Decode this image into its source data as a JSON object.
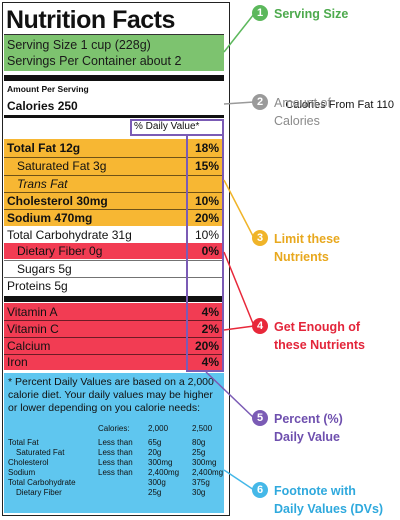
{
  "label": {
    "title": "Nutrition Facts",
    "serving_size": "Serving Size 1 cup (228g)",
    "servings_per_container": "Servings Per Container about 2",
    "amount_per_serving": "Amount Per Serving",
    "calories": "Calories 250",
    "calories_from_fat": "Calories From Fat 110",
    "dv_header": "% Daily Value*",
    "limit_rows": [
      {
        "name": "Total Fat 12g",
        "pct": "18%"
      },
      {
        "name": "Saturated Fat 3g",
        "pct": "15%"
      },
      {
        "name": "Trans Fat",
        "pct": ""
      },
      {
        "name": "Cholesterol 30mg",
        "pct": "10%"
      },
      {
        "name": "Sodium 470mg",
        "pct": "20%"
      }
    ],
    "carb_row": {
      "name": "Total Carbohydrate 31g",
      "pct": "10%"
    },
    "fiber_row": {
      "name": "Dietary Fiber 0g",
      "pct": "0%"
    },
    "sugars_row": {
      "name": "Sugars 5g"
    },
    "protein_row": {
      "name": "Proteins 5g"
    },
    "vitamin_rows": [
      {
        "name": "Vitamin A",
        "pct": "4%"
      },
      {
        "name": "Vitamin C",
        "pct": "2%"
      },
      {
        "name": "Calcium",
        "pct": "20%"
      },
      {
        "name": "Iron",
        "pct": "4%"
      }
    ],
    "footnote": "* Percent Daily Values are based on a 2,000 calorie diet. Your daily values may be higher or lower depending on you calorie needs:",
    "dv_table": {
      "header": {
        "label": "Calories:",
        "c1": "2,000",
        "c2": "2,500"
      },
      "rows": [
        {
          "name": "Total Fat",
          "limit": "Less than",
          "c1": "65g",
          "c2": "80g"
        },
        {
          "name": "Saturated Fat",
          "limit": "Less than",
          "c1": "20g",
          "c2": "25g"
        },
        {
          "name": "Cholesterol",
          "limit": "Less than",
          "c1": "300mg",
          "c2": "300mg"
        },
        {
          "name": "Sodium",
          "limit": "Less than",
          "c1": "2,400mg",
          "c2": "2,400mg"
        },
        {
          "name": "Total Carbohydrate",
          "limit": "",
          "c1": "300g",
          "c2": "375g"
        },
        {
          "name": "Dietary Fiber",
          "limit": "",
          "c1": "25g",
          "c2": "30g"
        }
      ]
    }
  },
  "callouts": [
    {
      "num": "1",
      "lines": [
        "Serving Size"
      ],
      "color": "#5cb85c",
      "text_color": "#4daa4d"
    },
    {
      "num": "2",
      "lines": [
        "Amount of",
        "Calories"
      ],
      "color": "#9a9a9a",
      "text_color": "#8a8a8a"
    },
    {
      "num": "3",
      "lines": [
        "Limit these",
        "Nutrients"
      ],
      "color": "#f0b429",
      "text_color": "#e8a81e"
    },
    {
      "num": "4",
      "lines": [
        "Get Enough of",
        "these Nutrients"
      ],
      "color": "#e8283a",
      "text_color": "#e3253a"
    },
    {
      "num": "5",
      "lines": [
        "Percent (%)",
        "Daily Value"
      ],
      "color": "#7b5bb5",
      "text_color": "#6e4fae"
    },
    {
      "num": "6",
      "lines": [
        "Footnote with",
        "Daily Values (DVs)"
      ],
      "color": "#45b8e8",
      "text_color": "#2fa9dd"
    }
  ]
}
